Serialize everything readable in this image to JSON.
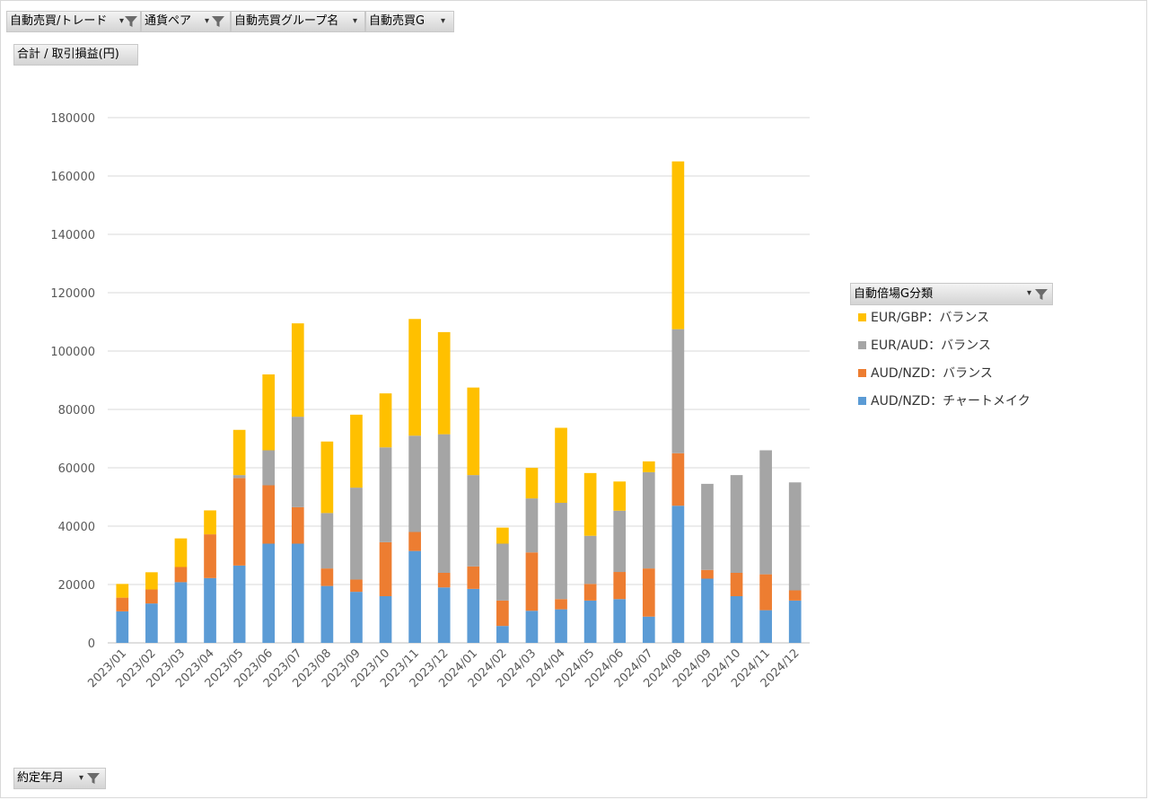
{
  "filters": {
    "trade": "自動売買/トレード",
    "pair": "通貨ペア",
    "group_name": "自動売買グループ名",
    "auto_g": "自動売買G"
  },
  "value_field": "合計 / 取引損益(円)",
  "axis_field": "約定年月",
  "legend_title": "自動倍場G分類",
  "colors": {
    "chartmake": "#5b9bd5",
    "audnzd_balance": "#ed7d31",
    "euraud_balance": "#a5a5a5",
    "eurgbp_balance": "#ffc000",
    "grid": "#d9d9d9",
    "axis_text": "#595959"
  },
  "chart_data": {
    "type": "bar",
    "stacked": true,
    "categories": [
      "2023/01",
      "2023/02",
      "2023/03",
      "2023/04",
      "2023/05",
      "2023/06",
      "2023/07",
      "2023/08",
      "2023/09",
      "2023/10",
      "2023/11",
      "2023/12",
      "2024/01",
      "2024/02",
      "2024/03",
      "2024/04",
      "2024/05",
      "2024/06",
      "2024/07",
      "2024/08",
      "2024/09",
      "2024/10",
      "2024/11",
      "2024/12"
    ],
    "ylim": [
      0,
      180000
    ],
    "yticks": [
      "0",
      "20000",
      "40000",
      "60000",
      "80000",
      "100000",
      "120000",
      "140000",
      "160000",
      "180000"
    ],
    "grid": true,
    "legend_position": "right",
    "series": [
      {
        "name": "AUD/NZD：チャートメイク",
        "color_key": "chartmake",
        "values": [
          10800,
          13500,
          20800,
          22200,
          26500,
          34000,
          34000,
          19500,
          17500,
          16000,
          31500,
          19000,
          18500,
          5800,
          11000,
          11500,
          14500,
          15000,
          9000,
          47000,
          22000,
          16000,
          11200,
          14500
        ]
      },
      {
        "name": "AUD/NZD：バランス",
        "color_key": "audnzd_balance",
        "values": [
          4700,
          4800,
          5200,
          15000,
          30000,
          20000,
          12500,
          6000,
          4200,
          18500,
          6500,
          5000,
          7700,
          8700,
          20000,
          3500,
          5700,
          9300,
          16500,
          18000,
          3000,
          8000,
          12300,
          3500
        ]
      },
      {
        "name": "EUR/AUD：バランス",
        "color_key": "euraud_balance",
        "values": [
          0,
          0,
          0,
          0,
          1000,
          12000,
          31000,
          19000,
          31500,
          32500,
          33000,
          47500,
          31300,
          19500,
          18500,
          33000,
          16500,
          21000,
          33000,
          42500,
          29500,
          33500,
          42500,
          37000
        ]
      },
      {
        "name": "EUR/GBP：バランス",
        "color_key": "eurgbp_balance",
        "values": [
          4700,
          5900,
          9800,
          8200,
          15500,
          26000,
          32000,
          24500,
          25000,
          18500,
          40000,
          35000,
          30000,
          5500,
          10500,
          25700,
          21500,
          10000,
          3700,
          57500,
          0,
          0,
          0,
          0
        ]
      }
    ]
  }
}
